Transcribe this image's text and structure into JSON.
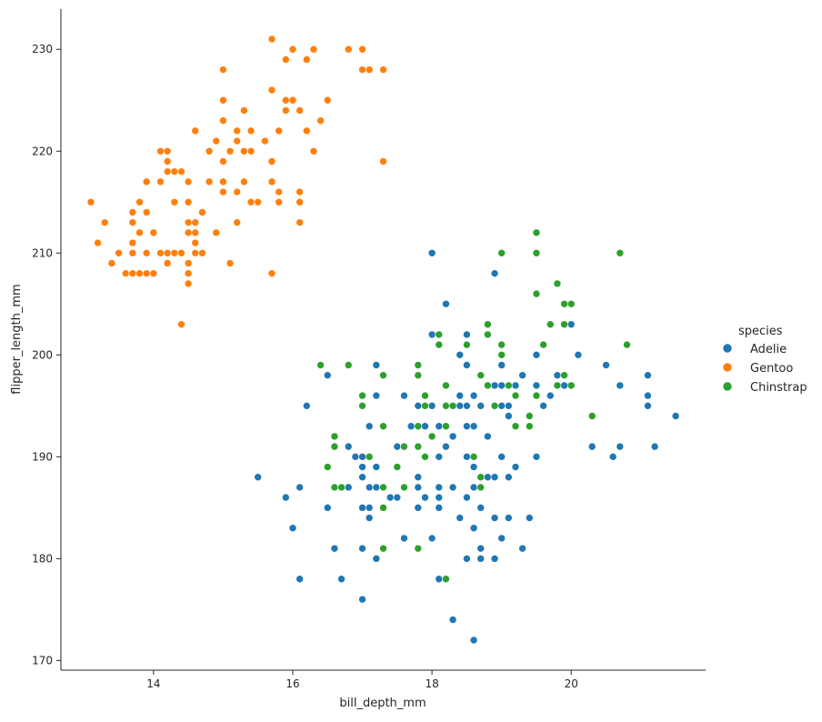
{
  "chart_data": {
    "type": "scatter",
    "title": "",
    "xlabel": "bill_depth_mm",
    "ylabel": "flipper_length_mm",
    "xlim": [
      12.67,
      21.93
    ],
    "ylim": [
      169.05,
      233.95
    ],
    "xticks": [
      14,
      16,
      18,
      20
    ],
    "yticks": [
      170,
      180,
      190,
      200,
      210,
      220,
      230
    ],
    "grid": false,
    "legend": {
      "title": "species",
      "placement": "right",
      "entries": [
        "Adelie",
        "Gentoo",
        "Chinstrap"
      ]
    },
    "series": [
      {
        "name": "Adelie",
        "color": "#1f77b4",
        "points": [
          [
            18.0,
            210
          ],
          [
            18.2,
            205
          ],
          [
            18.9,
            208
          ],
          [
            18.0,
            202
          ],
          [
            18.5,
            202
          ],
          [
            18.5,
            199
          ],
          [
            19.0,
            199
          ],
          [
            17.2,
            199
          ],
          [
            16.5,
            198
          ],
          [
            17.3,
            198
          ],
          [
            19.3,
            198
          ],
          [
            19.8,
            198
          ],
          [
            21.1,
            198
          ],
          [
            20.0,
            203
          ],
          [
            19.5,
            200
          ],
          [
            20.1,
            200
          ],
          [
            20.5,
            199
          ],
          [
            20.7,
            197
          ],
          [
            21.1,
            196
          ],
          [
            21.5,
            194
          ],
          [
            21.1,
            195
          ],
          [
            18.4,
            200
          ],
          [
            16.2,
            195
          ],
          [
            17.2,
            196
          ],
          [
            17.6,
            196
          ],
          [
            17.9,
            195
          ],
          [
            18.0,
            195
          ],
          [
            18.3,
            195
          ],
          [
            18.4,
            195
          ],
          [
            18.5,
            195
          ],
          [
            18.7,
            195
          ],
          [
            19.0,
            195
          ],
          [
            19.1,
            195
          ],
          [
            19.4,
            193
          ],
          [
            19.6,
            195
          ],
          [
            19.0,
            197
          ],
          [
            19.2,
            197
          ],
          [
            18.6,
            196
          ],
          [
            18.9,
            197
          ],
          [
            19.5,
            197
          ],
          [
            19.7,
            196
          ],
          [
            18.4,
            196
          ],
          [
            16.8,
            191
          ],
          [
            16.9,
            190
          ],
          [
            17.0,
            190
          ],
          [
            17.1,
            193
          ],
          [
            17.5,
            191
          ],
          [
            17.7,
            193
          ],
          [
            17.8,
            195
          ],
          [
            17.9,
            193
          ],
          [
            18.1,
            193
          ],
          [
            18.2,
            191
          ],
          [
            18.3,
            192
          ],
          [
            18.5,
            193
          ],
          [
            18.6,
            193
          ],
          [
            18.8,
            192
          ],
          [
            19.0,
            190
          ],
          [
            19.1,
            194
          ],
          [
            19.2,
            193
          ],
          [
            19.4,
            193
          ],
          [
            19.5,
            190
          ],
          [
            19.9,
            197
          ],
          [
            20.3,
            191
          ],
          [
            20.6,
            190
          ],
          [
            20.7,
            191
          ],
          [
            21.2,
            191
          ],
          [
            18.0,
            192
          ],
          [
            15.5,
            188
          ],
          [
            15.9,
            186
          ],
          [
            16.1,
            187
          ],
          [
            16.5,
            185
          ],
          [
            16.8,
            187
          ],
          [
            17.0,
            189
          ],
          [
            17.0,
            188
          ],
          [
            17.1,
            185
          ],
          [
            17.1,
            187
          ],
          [
            17.2,
            189
          ],
          [
            17.2,
            187
          ],
          [
            17.4,
            186
          ],
          [
            17.5,
            186
          ],
          [
            17.6,
            187
          ],
          [
            17.8,
            188
          ],
          [
            17.8,
            187
          ],
          [
            17.9,
            186
          ],
          [
            18.1,
            187
          ],
          [
            18.1,
            186
          ],
          [
            18.3,
            187
          ],
          [
            18.5,
            186
          ],
          [
            18.6,
            189
          ],
          [
            18.6,
            187
          ],
          [
            18.7,
            187
          ],
          [
            18.8,
            188
          ],
          [
            18.9,
            188
          ],
          [
            19.1,
            188
          ],
          [
            19.2,
            189
          ],
          [
            18.5,
            190
          ],
          [
            18.1,
            190
          ],
          [
            16.0,
            183
          ],
          [
            16.6,
            181
          ],
          [
            16.1,
            178
          ],
          [
            16.7,
            178
          ],
          [
            17.0,
            181
          ],
          [
            17.1,
            184
          ],
          [
            17.2,
            180
          ],
          [
            17.6,
            182
          ],
          [
            17.8,
            185
          ],
          [
            18.0,
            182
          ],
          [
            18.1,
            185
          ],
          [
            18.4,
            184
          ],
          [
            18.6,
            183
          ],
          [
            18.7,
            185
          ],
          [
            18.7,
            181
          ],
          [
            18.9,
            184
          ],
          [
            19.0,
            182
          ],
          [
            19.1,
            184
          ],
          [
            19.3,
            181
          ],
          [
            19.4,
            184
          ],
          [
            18.1,
            178
          ],
          [
            18.5,
            180
          ],
          [
            18.7,
            180
          ],
          [
            18.9,
            180
          ],
          [
            17.0,
            176
          ],
          [
            18.3,
            174
          ],
          [
            18.6,
            172
          ],
          [
            17.0,
            185
          ],
          [
            17.1,
            190
          ]
        ]
      },
      {
        "name": "Gentoo",
        "color": "#ff7f0e",
        "points": [
          [
            15.7,
            231
          ],
          [
            16.0,
            230
          ],
          [
            16.3,
            230
          ],
          [
            16.8,
            230
          ],
          [
            17.0,
            230
          ],
          [
            15.9,
            229
          ],
          [
            16.2,
            229
          ],
          [
            15.0,
            228
          ],
          [
            17.0,
            228
          ],
          [
            17.1,
            228
          ],
          [
            17.3,
            228
          ],
          [
            15.7,
            226
          ],
          [
            15.9,
            225
          ],
          [
            16.0,
            225
          ],
          [
            16.5,
            225
          ],
          [
            15.0,
            225
          ],
          [
            15.9,
            224
          ],
          [
            16.1,
            224
          ],
          [
            15.3,
            224
          ],
          [
            15.0,
            223
          ],
          [
            16.4,
            223
          ],
          [
            15.2,
            222
          ],
          [
            15.4,
            222
          ],
          [
            15.8,
            222
          ],
          [
            16.2,
            222
          ],
          [
            14.6,
            222
          ],
          [
            14.9,
            221
          ],
          [
            15.6,
            221
          ],
          [
            15.2,
            221
          ],
          [
            15.1,
            220
          ],
          [
            15.3,
            220
          ],
          [
            15.4,
            220
          ],
          [
            16.3,
            220
          ],
          [
            14.1,
            220
          ],
          [
            14.2,
            220
          ],
          [
            14.8,
            220
          ],
          [
            15.0,
            219
          ],
          [
            15.7,
            219
          ],
          [
            17.3,
            219
          ],
          [
            14.2,
            219
          ],
          [
            14.2,
            218
          ],
          [
            14.3,
            218
          ],
          [
            14.4,
            218
          ],
          [
            14.1,
            217
          ],
          [
            14.5,
            217
          ],
          [
            13.9,
            217
          ],
          [
            14.8,
            217
          ],
          [
            15.0,
            217
          ],
          [
            15.3,
            217
          ],
          [
            15.7,
            217
          ],
          [
            15.0,
            216
          ],
          [
            15.2,
            216
          ],
          [
            15.8,
            216
          ],
          [
            16.1,
            216
          ],
          [
            14.3,
            215
          ],
          [
            14.5,
            215
          ],
          [
            13.8,
            215
          ],
          [
            15.5,
            215
          ],
          [
            15.4,
            215
          ],
          [
            15.8,
            215
          ],
          [
            16.1,
            215
          ],
          [
            13.1,
            215
          ],
          [
            13.7,
            214
          ],
          [
            13.9,
            214
          ],
          [
            14.7,
            214
          ],
          [
            13.3,
            213
          ],
          [
            13.7,
            213
          ],
          [
            14.5,
            213
          ],
          [
            14.6,
            213
          ],
          [
            15.2,
            213
          ],
          [
            16.1,
            213
          ],
          [
            13.8,
            212
          ],
          [
            14.0,
            212
          ],
          [
            14.5,
            212
          ],
          [
            14.6,
            212
          ],
          [
            14.9,
            212
          ],
          [
            13.2,
            211
          ],
          [
            13.7,
            211
          ],
          [
            14.6,
            211
          ],
          [
            13.5,
            210
          ],
          [
            13.7,
            210
          ],
          [
            13.9,
            210
          ],
          [
            14.1,
            210
          ],
          [
            14.2,
            210
          ],
          [
            14.3,
            210
          ],
          [
            14.4,
            210
          ],
          [
            14.6,
            210
          ],
          [
            14.7,
            210
          ],
          [
            13.4,
            209
          ],
          [
            14.2,
            209
          ],
          [
            14.5,
            209
          ],
          [
            15.1,
            209
          ],
          [
            13.6,
            208
          ],
          [
            13.7,
            208
          ],
          [
            13.8,
            208
          ],
          [
            13.9,
            208
          ],
          [
            14.0,
            208
          ],
          [
            14.5,
            208
          ],
          [
            15.7,
            208
          ],
          [
            14.5,
            207
          ],
          [
            14.4,
            203
          ]
        ]
      },
      {
        "name": "Chinstrap",
        "color": "#2ca02c",
        "points": [
          [
            19.5,
            212
          ],
          [
            19.0,
            210
          ],
          [
            19.5,
            210
          ],
          [
            20.7,
            210
          ],
          [
            19.8,
            207
          ],
          [
            19.5,
            206
          ],
          [
            19.9,
            205
          ],
          [
            20.0,
            205
          ],
          [
            19.7,
            203
          ],
          [
            19.9,
            203
          ],
          [
            18.8,
            203
          ],
          [
            18.1,
            202
          ],
          [
            18.8,
            202
          ],
          [
            18.1,
            201
          ],
          [
            18.5,
            201
          ],
          [
            19.0,
            201
          ],
          [
            19.6,
            201
          ],
          [
            20.8,
            201
          ],
          [
            19.0,
            200
          ],
          [
            18.7,
            198
          ],
          [
            17.3,
            198
          ],
          [
            17.8,
            198
          ],
          [
            19.9,
            198
          ],
          [
            17.8,
            199
          ],
          [
            16.4,
            199
          ],
          [
            16.8,
            199
          ],
          [
            19.1,
            197
          ],
          [
            20.0,
            197
          ],
          [
            19.8,
            197
          ],
          [
            18.2,
            197
          ],
          [
            18.8,
            197
          ],
          [
            17.0,
            196
          ],
          [
            17.9,
            196
          ],
          [
            19.2,
            196
          ],
          [
            19.5,
            196
          ],
          [
            18.2,
            195
          ],
          [
            18.3,
            195
          ],
          [
            18.9,
            195
          ],
          [
            17.0,
            195
          ],
          [
            17.9,
            195
          ],
          [
            19.4,
            194
          ],
          [
            20.3,
            194
          ],
          [
            17.3,
            193
          ],
          [
            17.8,
            193
          ],
          [
            18.2,
            193
          ],
          [
            19.2,
            193
          ],
          [
            19.4,
            193
          ],
          [
            16.6,
            192
          ],
          [
            18.0,
            192
          ],
          [
            16.6,
            191
          ],
          [
            17.6,
            191
          ],
          [
            17.8,
            191
          ],
          [
            17.1,
            190
          ],
          [
            18.6,
            190
          ],
          [
            17.9,
            190
          ],
          [
            16.5,
            189
          ],
          [
            17.5,
            189
          ],
          [
            18.7,
            188
          ],
          [
            16.6,
            187
          ],
          [
            16.7,
            187
          ],
          [
            17.3,
            187
          ],
          [
            17.6,
            187
          ],
          [
            18.7,
            187
          ],
          [
            17.3,
            185
          ],
          [
            17.3,
            181
          ],
          [
            17.8,
            181
          ],
          [
            18.2,
            178
          ]
        ]
      }
    ]
  }
}
